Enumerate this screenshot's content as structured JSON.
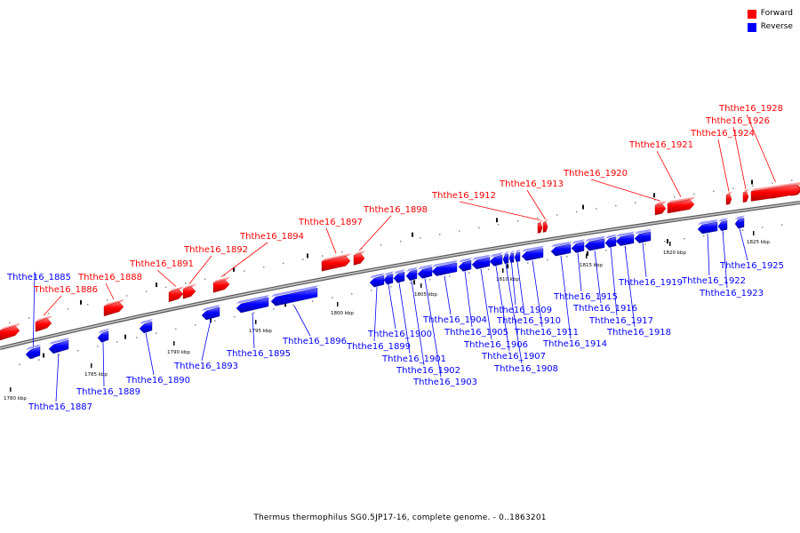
{
  "caption": "Thermus thermophilus SG0.5JP17-16, complete genome. - 0..1863201",
  "legend": [
    {
      "label": "Forward",
      "color": "#ff0000"
    },
    {
      "label": "Reverse",
      "color": "#0000ff"
    }
  ],
  "colors": {
    "forward": "#ff0000",
    "reverse": "#0000ff",
    "backbone": "#999999"
  },
  "ruler_ticks": [
    "1780 kbp",
    "1785 kbp",
    "1790 kbp",
    "1795 kbp",
    "1800 kbp",
    "1805 kbp",
    "1810 kbp",
    "1815 kbp",
    "1820 kbp",
    "1825 kbp"
  ],
  "genes": [
    {
      "id": "Ththe16_1885",
      "strand": "reverse"
    },
    {
      "id": "Ththe16_1886",
      "strand": "forward"
    },
    {
      "id": "Ththe16_1887",
      "strand": "reverse"
    },
    {
      "id": "Ththe16_1888",
      "strand": "forward"
    },
    {
      "id": "Ththe16_1889",
      "strand": "reverse"
    },
    {
      "id": "Ththe16_1890",
      "strand": "reverse"
    },
    {
      "id": "Ththe16_1891",
      "strand": "forward"
    },
    {
      "id": "Ththe16_1892",
      "strand": "forward"
    },
    {
      "id": "Ththe16_1893",
      "strand": "reverse"
    },
    {
      "id": "Ththe16_1894",
      "strand": "forward"
    },
    {
      "id": "Ththe16_1895",
      "strand": "reverse"
    },
    {
      "id": "Ththe16_1896",
      "strand": "reverse"
    },
    {
      "id": "Ththe16_1897",
      "strand": "forward"
    },
    {
      "id": "Ththe16_1898",
      "strand": "forward"
    },
    {
      "id": "Ththe16_1899",
      "strand": "reverse"
    },
    {
      "id": "Ththe16_1900",
      "strand": "reverse"
    },
    {
      "id": "Ththe16_1901",
      "strand": "reverse"
    },
    {
      "id": "Ththe16_1902",
      "strand": "reverse"
    },
    {
      "id": "Ththe16_1903",
      "strand": "reverse"
    },
    {
      "id": "Ththe16_1904",
      "strand": "reverse"
    },
    {
      "id": "Ththe16_1905",
      "strand": "reverse"
    },
    {
      "id": "Ththe16_1906",
      "strand": "reverse"
    },
    {
      "id": "Ththe16_1907",
      "strand": "reverse"
    },
    {
      "id": "Ththe16_1908",
      "strand": "reverse"
    },
    {
      "id": "Ththe16_1909",
      "strand": "reverse"
    },
    {
      "id": "Ththe16_1910",
      "strand": "reverse"
    },
    {
      "id": "Ththe16_1911",
      "strand": "reverse"
    },
    {
      "id": "Ththe16_1912",
      "strand": "forward"
    },
    {
      "id": "Ththe16_1913",
      "strand": "forward"
    },
    {
      "id": "Ththe16_1914",
      "strand": "reverse"
    },
    {
      "id": "Ththe16_1915",
      "strand": "reverse"
    },
    {
      "id": "Ththe16_1916",
      "strand": "reverse"
    },
    {
      "id": "Ththe16_1917",
      "strand": "reverse"
    },
    {
      "id": "Ththe16_1918",
      "strand": "reverse"
    },
    {
      "id": "Ththe16_1919",
      "strand": "reverse"
    },
    {
      "id": "Ththe16_1920",
      "strand": "forward"
    },
    {
      "id": "Ththe16_1921",
      "strand": "forward"
    },
    {
      "id": "Ththe16_1922",
      "strand": "reverse"
    },
    {
      "id": "Ththe16_1923",
      "strand": "reverse"
    },
    {
      "id": "Ththe16_1924",
      "strand": "forward"
    },
    {
      "id": "Ththe16_1925",
      "strand": "reverse"
    },
    {
      "id": "Ththe16_1926",
      "strand": "forward"
    },
    {
      "id": "Ththe16_1928",
      "strand": "forward"
    }
  ]
}
